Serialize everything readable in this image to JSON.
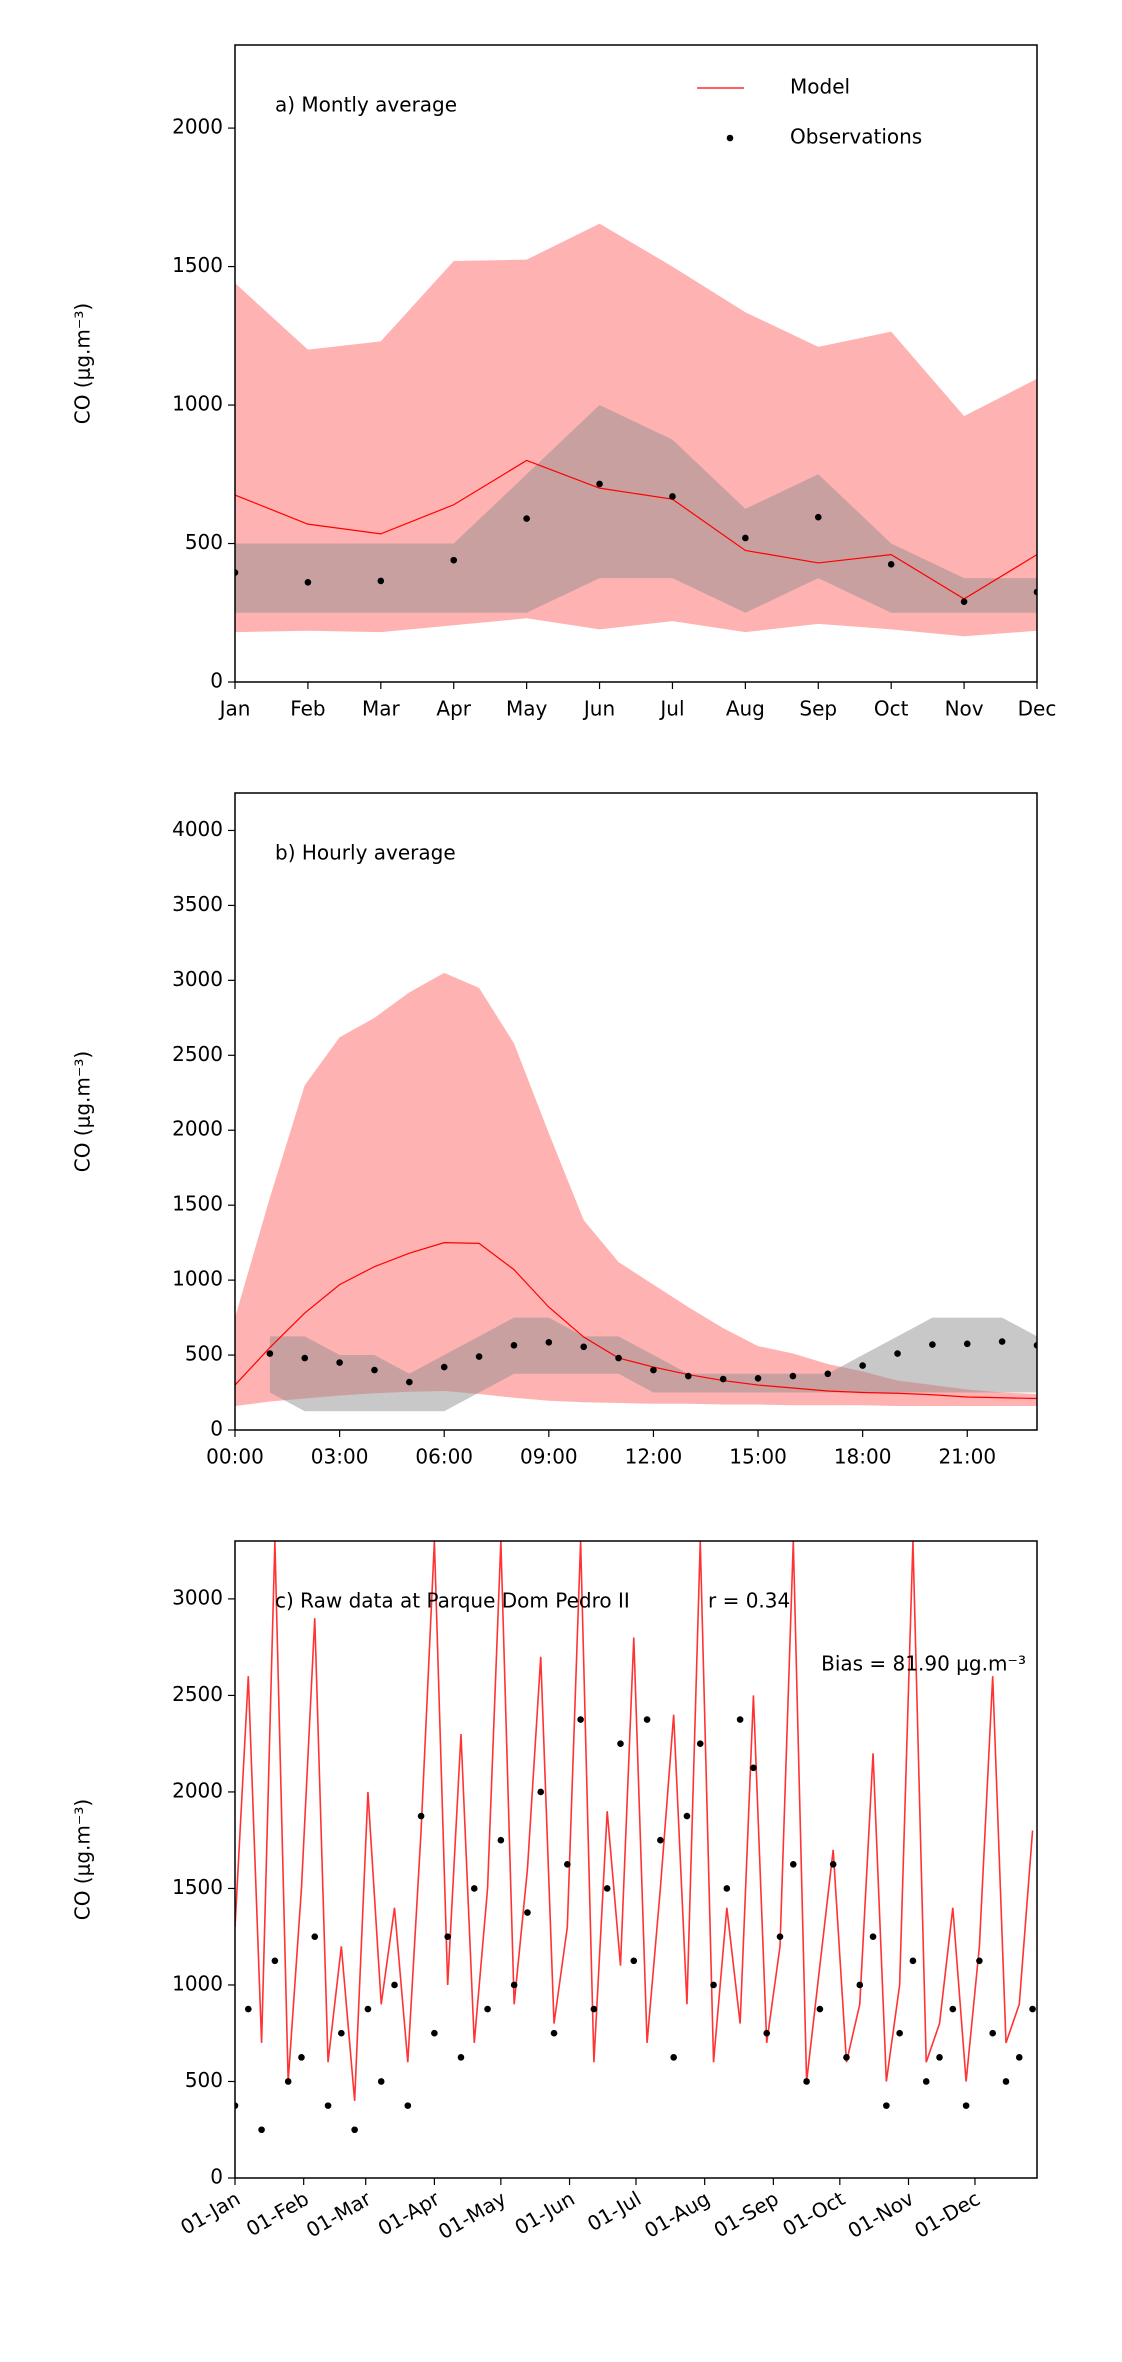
{
  "chart_data": [
    {
      "type": "line",
      "title": "a) Montly average",
      "ylabel": "CO (μg.m⁻³)",
      "categories": [
        "Jan",
        "Feb",
        "Mar",
        "Apr",
        "May",
        "Jun",
        "Jul",
        "Aug",
        "Sep",
        "Oct",
        "Nov",
        "Dec"
      ],
      "ylim": [
        0,
        2300
      ],
      "yticks": [
        0,
        500,
        1000,
        1500,
        2000
      ],
      "legend": "upper right",
      "band_opacity": 0.3,
      "series": [
        {
          "name": "Model",
          "style": "line",
          "color": "#ff0000",
          "band_color": "#ff0000",
          "values": [
            675,
            570,
            535,
            640,
            800,
            700,
            660,
            475,
            430,
            460,
            300,
            460
          ],
          "lower": [
            180,
            185,
            180,
            205,
            230,
            190,
            220,
            180,
            210,
            190,
            165,
            185
          ],
          "upper": [
            1440,
            1200,
            1230,
            1520,
            1525,
            1655,
            1500,
            1335,
            1210,
            1265,
            960,
            1095
          ]
        },
        {
          "name": "Observations",
          "style": "dots",
          "color": "#000000",
          "band_color": "#8c8c8c",
          "values": [
            395,
            360,
            365,
            440,
            590,
            715,
            670,
            520,
            595,
            425,
            290,
            325
          ],
          "lower": [
            250,
            250,
            250,
            250,
            250,
            375,
            375,
            250,
            375,
            250,
            250,
            250
          ],
          "upper": [
            500,
            500,
            500,
            500,
            750,
            1000,
            875,
            625,
            750,
            500,
            375,
            375
          ]
        }
      ]
    },
    {
      "type": "line",
      "title": "b) Hourly average",
      "ylabel": "CO (μg.m⁻³)",
      "x": [
        0,
        1,
        2,
        3,
        4,
        5,
        6,
        7,
        8,
        9,
        10,
        11,
        12,
        13,
        14,
        15,
        16,
        17,
        18,
        19,
        20,
        21,
        22,
        23
      ],
      "xlim": [
        0,
        23
      ],
      "xticks": [
        {
          "value": 0,
          "label": "00:00"
        },
        {
          "value": 3,
          "label": "03:00"
        },
        {
          "value": 6,
          "label": "06:00"
        },
        {
          "value": 9,
          "label": "09:00"
        },
        {
          "value": 12,
          "label": "12:00"
        },
        {
          "value": 15,
          "label": "15:00"
        },
        {
          "value": 18,
          "label": "18:00"
        },
        {
          "value": 21,
          "label": "21:00"
        }
      ],
      "ylim": [
        0,
        4250
      ],
      "yticks": [
        0,
        500,
        1000,
        1500,
        2000,
        2500,
        3000,
        3500,
        4000
      ],
      "band_opacity": 0.3,
      "series": [
        {
          "style": "line",
          "color": "#ff0000",
          "band_color": "#ff0000",
          "values": [
            300,
            550,
            780,
            970,
            1090,
            1180,
            1250,
            1245,
            1070,
            820,
            620,
            480,
            420,
            370,
            330,
            300,
            280,
            260,
            250,
            245,
            235,
            220,
            215,
            210
          ],
          "lower": [
            160,
            190,
            210,
            230,
            245,
            255,
            260,
            240,
            215,
            195,
            185,
            180,
            175,
            175,
            170,
            170,
            165,
            165,
            165,
            160,
            160,
            160,
            160,
            160
          ],
          "upper": [
            750,
            1550,
            2300,
            2620,
            2750,
            2920,
            3050,
            2950,
            2580,
            1980,
            1400,
            1120,
            970,
            820,
            680,
            560,
            510,
            440,
            390,
            330,
            300,
            270,
            250,
            240
          ]
        },
        {
          "style": "dots",
          "color": "#000000",
          "band_color": "#8c8c8c",
          "values": [
            null,
            510,
            480,
            450,
            400,
            320,
            420,
            490,
            565,
            585,
            555,
            480,
            400,
            360,
            340,
            345,
            360,
            375,
            430,
            510,
            570,
            575,
            590,
            565
          ],
          "lower": [
            null,
            250,
            125,
            125,
            125,
            125,
            125,
            250,
            375,
            375,
            375,
            375,
            250,
            250,
            250,
            250,
            250,
            250,
            250,
            250,
            250,
            250,
            250,
            250
          ],
          "upper": [
            null,
            625,
            625,
            500,
            500,
            375,
            500,
            625,
            750,
            750,
            625,
            625,
            500,
            375,
            375,
            375,
            375,
            375,
            500,
            625,
            750,
            750,
            750,
            625
          ]
        }
      ]
    },
    {
      "type": "line",
      "title": "c) Raw data at Parque Dom Pedro II",
      "ylabel": "CO (μg.m⁻³)",
      "annotations": [
        "r = 0.34",
        "Bias = 81.90 μg.m⁻³"
      ],
      "x": [
        0,
        6,
        12,
        18,
        24,
        30,
        36,
        42,
        48,
        54,
        60,
        66,
        72,
        78,
        84,
        90,
        96,
        102,
        108,
        114,
        120,
        126,
        132,
        138,
        144,
        150,
        156,
        162,
        168,
        174,
        180,
        186,
        192,
        198,
        204,
        210,
        216,
        222,
        228,
        234,
        240,
        246,
        252,
        258,
        264,
        270,
        276,
        282,
        288,
        294,
        300,
        306,
        312,
        318,
        324,
        330,
        336,
        342,
        348,
        354,
        360
      ],
      "xlim": [
        0,
        362
      ],
      "xticks": [
        {
          "value": 0,
          "label": "01-Jan"
        },
        {
          "value": 31,
          "label": "01-Feb"
        },
        {
          "value": 59,
          "label": "01-Mar"
        },
        {
          "value": 90,
          "label": "01-Apr"
        },
        {
          "value": 120,
          "label": "01-May"
        },
        {
          "value": 151,
          "label": "01-Jun"
        },
        {
          "value": 181,
          "label": "01-Jul"
        },
        {
          "value": 212,
          "label": "01-Aug"
        },
        {
          "value": 243,
          "label": "01-Sep"
        },
        {
          "value": 273,
          "label": "01-Oct"
        },
        {
          "value": 304,
          "label": "01-Nov"
        },
        {
          "value": 334,
          "label": "01-Dec"
        }
      ],
      "ylim": [
        0,
        3300
      ],
      "yticks": [
        0,
        500,
        1000,
        1500,
        2000,
        2500,
        3000
      ],
      "series": [
        {
          "style": "line",
          "color": "#ff0000",
          "values": [
            1300,
            2600,
            700,
            3300,
            500,
            1500,
            2900,
            600,
            1200,
            400,
            2000,
            900,
            1400,
            600,
            1800,
            3300,
            1000,
            2300,
            700,
            1500,
            3300,
            900,
            1600,
            2700,
            800,
            1300,
            3300,
            600,
            1900,
            1100,
            2800,
            700,
            1500,
            2400,
            900,
            3300,
            600,
            1400,
            800,
            2500,
            700,
            1200,
            3300,
            500,
            1100,
            1700,
            600,
            900,
            2200,
            500,
            1000,
            3300,
            600,
            800,
            1400,
            500,
            1200,
            2600,
            700,
            900,
            1800
          ]
        },
        {
          "style": "dots",
          "color": "#000000",
          "values": [
            375,
            875,
            250,
            1125,
            500,
            625,
            1250,
            375,
            750,
            250,
            875,
            500,
            1000,
            375,
            1875,
            750,
            1250,
            625,
            1500,
            875,
            1750,
            1000,
            1375,
            2000,
            750,
            1625,
            2375,
            875,
            1500,
            2250,
            1125,
            2375,
            1750,
            625,
            1875,
            2250,
            1000,
            1500,
            2375,
            2125,
            750,
            1250,
            1625,
            500,
            875,
            1625,
            625,
            1000,
            1250,
            375,
            750,
            1125,
            500,
            625,
            875,
            375,
            1125,
            750,
            500,
            625,
            875
          ]
        }
      ]
    }
  ]
}
